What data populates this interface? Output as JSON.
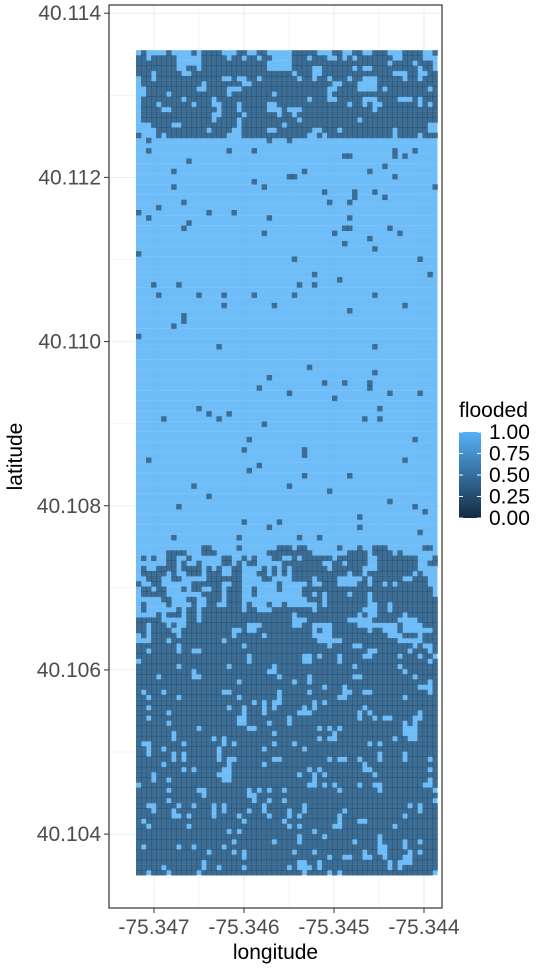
{
  "chart_data": {
    "type": "heatmap",
    "title": "",
    "xlabel": "longitude",
    "ylabel": "latitude",
    "xlim": [
      -75.3475,
      -75.3438
    ],
    "ylim": [
      40.1031,
      40.1141
    ],
    "x_ticks": [
      -75.347,
      -75.346,
      -75.345,
      -75.344
    ],
    "x_tick_labels": [
      "-75.347",
      "-75.346",
      "-75.345",
      "-75.344"
    ],
    "y_ticks": [
      40.104,
      40.106,
      40.108,
      40.11,
      40.112,
      40.114
    ],
    "y_tick_labels": [
      "40.104",
      "40.106",
      "40.108",
      "40.110",
      "40.112",
      "40.114"
    ],
    "grid": true,
    "legend": {
      "title": "flooded",
      "position": "right",
      "breaks": [
        1.0,
        0.75,
        0.5,
        0.25,
        0.0
      ],
      "labels": [
        "1.00",
        "0.75",
        "0.50",
        "0.25",
        "0.00"
      ]
    },
    "colors": {
      "low": "#132B43",
      "high": "#56B1F7",
      "panel_border": "#333333",
      "grid": "#ebebeb"
    },
    "cells": {
      "note_fields": [
        "lon",
        "lat",
        "flooded"
      ],
      "lon_range": [
        -75.3472,
        -75.34385
      ],
      "lat_range": [
        40.1035,
        40.11355
      ],
      "n_cols": 60,
      "n_rows": 160,
      "dominant_value": 1,
      "unflooded_value": 0,
      "unflooded_regions": [
        {
          "name": "top band",
          "lat": [
            40.1125,
            40.11355
          ],
          "fraction": 0.35
        },
        {
          "name": "upper scattered",
          "lat": [
            40.1105,
            40.1125
          ],
          "fraction": 0.03
        },
        {
          "name": "middle scattered",
          "lat": [
            40.1075,
            40.1105
          ],
          "fraction": 0.02
        },
        {
          "name": "lower transition",
          "lat": [
            40.1063,
            40.1075
          ],
          "fraction": 0.25
        },
        {
          "name": "bottom band",
          "lat": [
            40.1035,
            40.1063
          ],
          "fraction": 0.45
        }
      ]
    }
  }
}
